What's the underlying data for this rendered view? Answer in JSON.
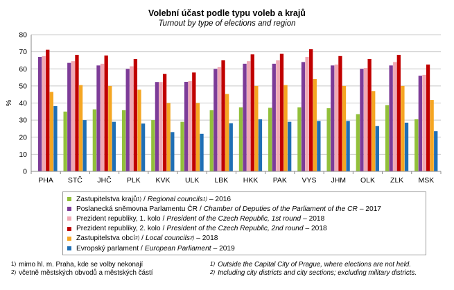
{
  "header": {
    "title": "Volební účast podle typu voleb a krajů",
    "subtitle": "Turnout  by type of elections and region"
  },
  "chart_data": {
    "type": "bar",
    "title": "Volební účast podle typu voleb a krajů",
    "subtitle": "Turnout  by type of elections and region",
    "xlabel": "",
    "ylabel": "%",
    "ylim": [
      0,
      80
    ],
    "yticks": [
      0,
      10,
      20,
      30,
      40,
      50,
      60,
      70,
      80
    ],
    "ytick_labels": [
      "0",
      "10",
      "20",
      "30",
      "40",
      "50",
      "60",
      "70",
      "80"
    ],
    "grid": true,
    "legend_position": "bottom",
    "categories": [
      "PHA",
      "STČ",
      "JHČ",
      "PLK",
      "KVK",
      "ULK",
      "LBK",
      "HKK",
      "PAK",
      "VYS",
      "JHM",
      "OLK",
      "ZLK",
      "MSK"
    ],
    "series": [
      {
        "name": "Zastupitelstva krajů 1) / Regional councils 1) – 2016",
        "color": "#92c03b",
        "values": [
          null,
          35.0,
          36.3,
          35.8,
          30.0,
          29.0,
          35.8,
          37.5,
          37.2,
          37.5,
          37.0,
          33.5,
          38.8,
          30.5
        ]
      },
      {
        "name": "Poslanecká sněmovna Parlamentu ČR / Chamber of Deputies of the Parliament of the CR – 2017",
        "color": "#7d3c98",
        "values": [
          67.0,
          63.5,
          62.0,
          60.0,
          52.3,
          52.4,
          60.0,
          63.0,
          63.0,
          64.0,
          62.0,
          60.0,
          62.0,
          56.0
        ]
      },
      {
        "name": "Prezident republiky, 1. kolo / President of the Czech Republic, 1st round – 2018",
        "color": "#f0a8b4",
        "values": [
          67.5,
          64.5,
          63.0,
          61.5,
          52.3,
          52.8,
          61.0,
          64.5,
          65.0,
          67.0,
          62.5,
          60.5,
          64.0,
          56.5
        ]
      },
      {
        "name": "Prezident republiky, 2. kolo / President of the Czech Republic, 2nd round – 2018",
        "color": "#c00000",
        "values": [
          71.2,
          68.2,
          67.8,
          65.8,
          57.0,
          57.9,
          65.0,
          68.5,
          68.8,
          71.5,
          67.5,
          65.8,
          68.2,
          62.5
        ]
      },
      {
        "name": "Zastupitelstva obcí 2) / Local councils 2) – 2018",
        "color": "#f5a623",
        "values": [
          46.5,
          50.5,
          50.0,
          47.8,
          40.0,
          40.0,
          45.3,
          50.0,
          50.5,
          54.0,
          50.0,
          47.0,
          50.0,
          41.8
        ]
      },
      {
        "name": "Evropský parlament / European Parliament – 2019",
        "color": "#1f6fb5",
        "values": [
          38.2,
          30.0,
          29.0,
          28.0,
          23.0,
          22.0,
          28.2,
          30.5,
          29.0,
          29.5,
          29.5,
          26.5,
          28.5,
          23.5
        ]
      }
    ]
  },
  "legend": [
    {
      "cz": "Zastupitelstva krajů",
      "cz_sup": "1)",
      "sep": "/",
      "en": "Regional councils",
      "en_sup": "1)",
      "year": "– 2016",
      "color": "#92c03b"
    },
    {
      "cz": "Poslanecká sněmovna Parlamentu  ČR",
      "cz_sup": "",
      "sep": "/",
      "en": "Chamber of Deputies of the Parliament of the CR",
      "en_sup": "",
      "year": "– 2017",
      "color": "#7d3c98"
    },
    {
      "cz": "Prezident republiky, 1. kolo",
      "cz_sup": "",
      "sep": "/",
      "en": "President of the Czech Republic, 1st round",
      "en_sup": "",
      "year": "– 2018",
      "color": "#f0a8b4"
    },
    {
      "cz": "Prezident republiky, 2. kolo",
      "cz_sup": "",
      "sep": "/",
      "en": "President of the Czech Republic, 2nd round",
      "en_sup": "",
      "year": "– 2018",
      "color": "#c00000"
    },
    {
      "cz": "Zastupitelstva obcí",
      "cz_sup": "2)",
      "sep": "/",
      "en": "Local councils",
      "en_sup": "2)",
      "year": "– 2018",
      "color": "#f5a623"
    },
    {
      "cz": "Evropský parlament",
      "cz_sup": "",
      "sep": "/",
      "en": "European Parliament",
      "en_sup": "",
      "year": "– 2019",
      "color": "#1f6fb5"
    }
  ],
  "footnotes": {
    "cz": [
      {
        "mark": "1)",
        "text": "mimo  hl.  m.  Praha,  kde se volby nekonají"
      },
      {
        "mark": "2)",
        "text": "včetně městských obvodů a městských částí"
      }
    ],
    "en": [
      {
        "mark": "1)",
        "text": "Outside the Capital City of Prague, where elections are not held."
      },
      {
        "mark": "2)",
        "text": "Including city districts and city sections; excluding military districts."
      }
    ]
  }
}
